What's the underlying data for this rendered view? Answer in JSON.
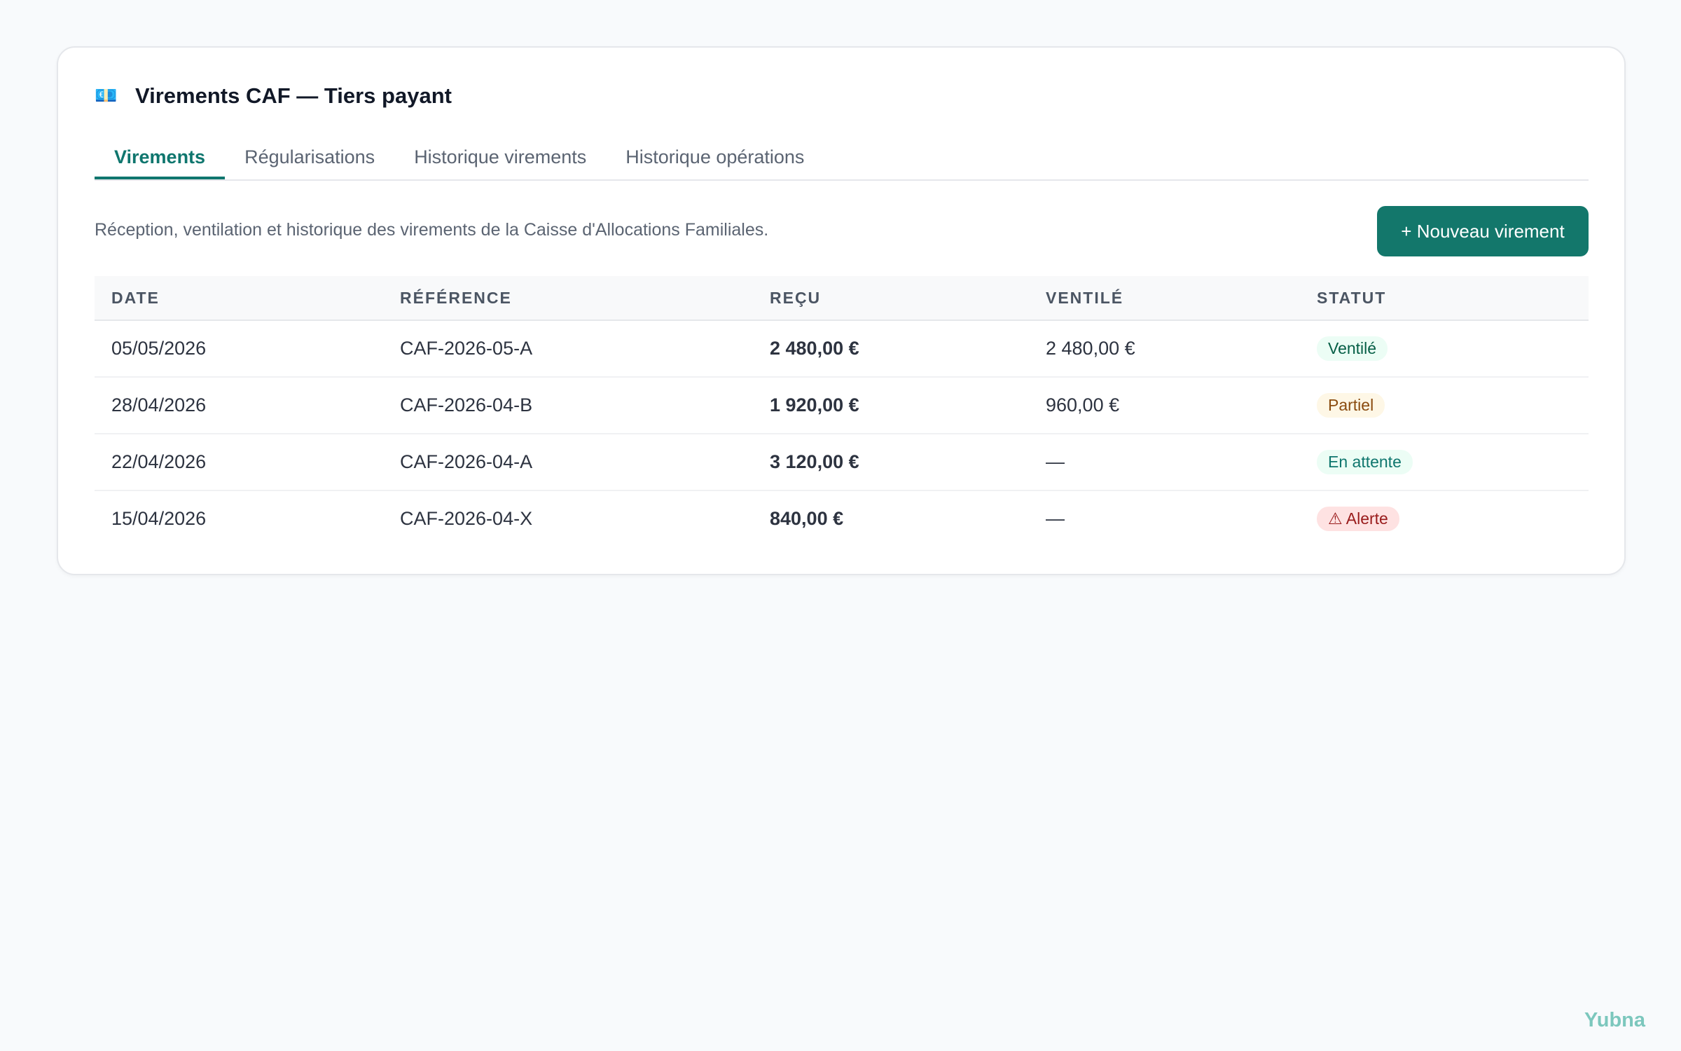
{
  "header": {
    "icon": "💶",
    "title": "Virements CAF — Tiers payant"
  },
  "tabs": [
    "Virements",
    "Régularisations",
    "Historique virements",
    "Historique opérations"
  ],
  "description": "Réception, ventilation et historique des virements de la Caisse d'Allocations Familiales.",
  "button": "+ Nouveau virement",
  "table": {
    "columns": [
      "DATE",
      "RÉFÉRENCE",
      "REÇU",
      "VENTILÉ",
      "STATUT"
    ],
    "rows": [
      [
        "05/05/2026",
        "CAF-2026-05-A",
        "2 480,00 €",
        "2 480,00 €",
        "Ventilé"
      ],
      [
        "28/04/2026",
        "CAF-2026-04-B",
        "1 920,00 €",
        "960,00 €",
        "Partiel"
      ],
      [
        "22/04/2026",
        "CAF-2026-04-A",
        "3 120,00 €",
        "—",
        "En attente"
      ],
      [
        "15/04/2026",
        "CAF-2026-04-X",
        "840,00 €",
        "—",
        "⚠ Alerte"
      ]
    ]
  },
  "footer": "Yubna"
}
